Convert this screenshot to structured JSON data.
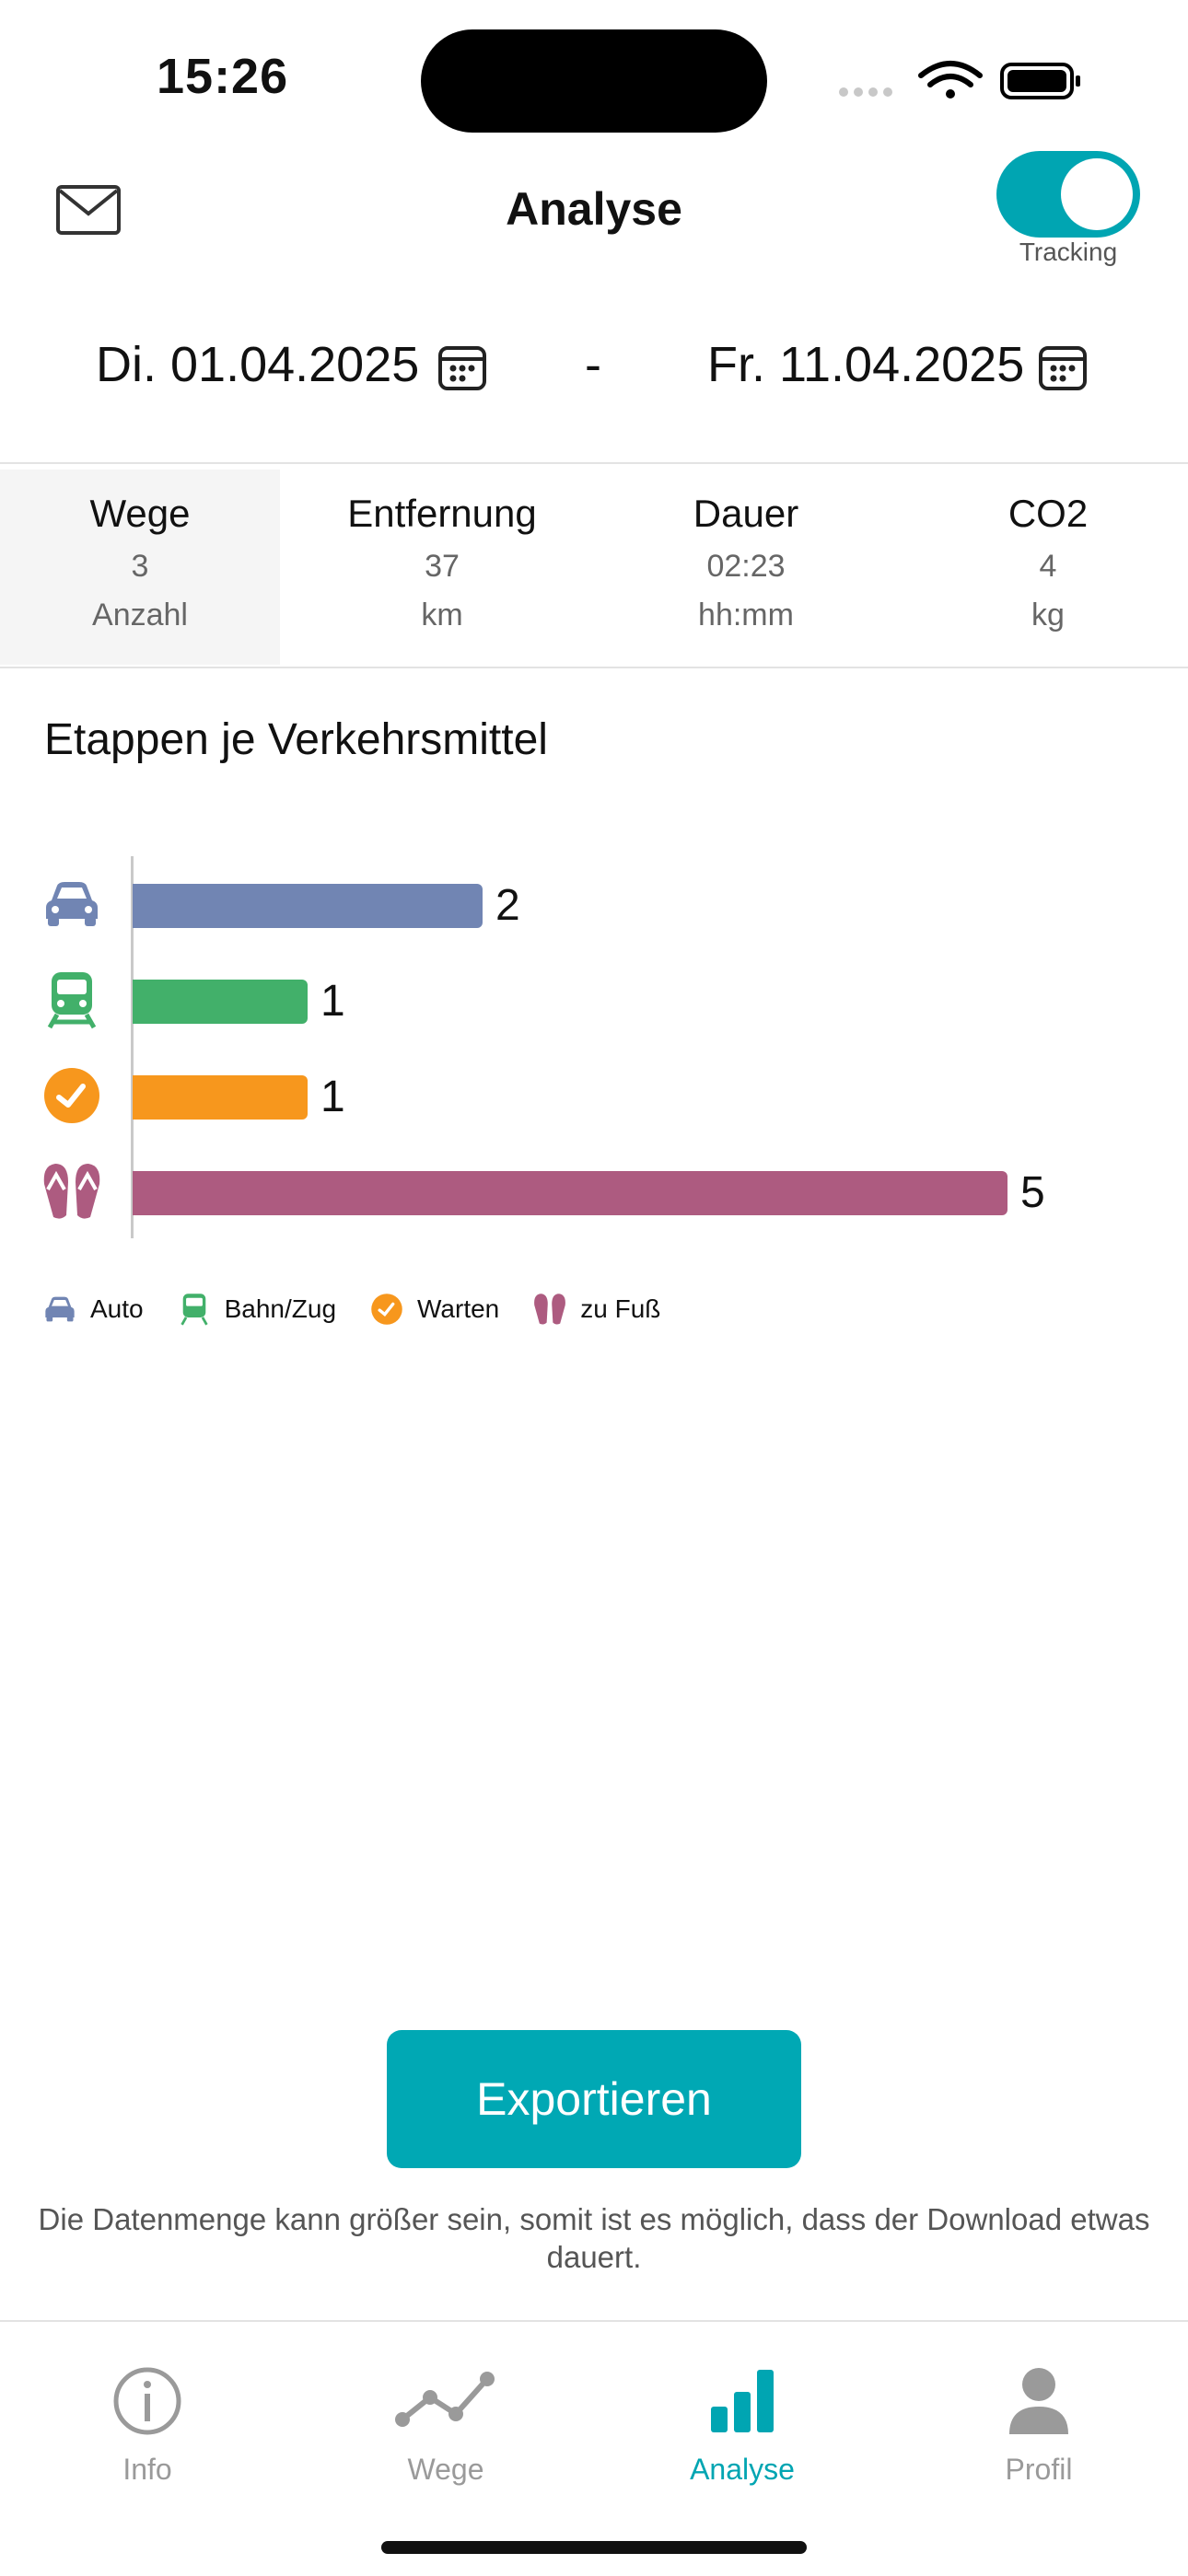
{
  "status": {
    "time": "15:26"
  },
  "header": {
    "title": "Analyse",
    "tracking_label": "Tracking",
    "tracking_on": true
  },
  "dates": {
    "from": "Di. 01.04.2025",
    "separator": "-",
    "to": "Fr. 11.04.2025"
  },
  "stats": [
    {
      "title": "Wege",
      "value": "3",
      "unit": "Anzahl"
    },
    {
      "title": "Entfernung",
      "value": "37",
      "unit": "km"
    },
    {
      "title": "Dauer",
      "value": "02:23",
      "unit": "hh:mm"
    },
    {
      "title": "CO2",
      "value": "4",
      "unit": "kg"
    }
  ],
  "chart": {
    "title": "Etappen je Verkehrsmittel"
  },
  "chart_data": {
    "type": "bar",
    "orientation": "horizontal",
    "title": "Etappen je Verkehrsmittel",
    "categories": [
      "Auto",
      "Bahn/Zug",
      "Warten",
      "zu Fuß"
    ],
    "values": [
      2,
      1,
      1,
      5
    ],
    "colors": [
      "#7185b3",
      "#42b06a",
      "#f7971d",
      "#ad5b80"
    ],
    "icons": [
      "car-icon",
      "train-icon",
      "clock-icon",
      "flip-flops-icon"
    ],
    "legend_position": "bottom-left"
  },
  "export": {
    "label": "Exportieren",
    "note": "Die Datenmenge kann größer sein, somit ist es möglich, dass der Download etwas dauert."
  },
  "tabs": [
    {
      "label": "Info",
      "icon": "info-icon"
    },
    {
      "label": "Wege",
      "icon": "route-icon"
    },
    {
      "label": "Analyse",
      "icon": "bar-chart-icon",
      "active": true
    },
    {
      "label": "Profil",
      "icon": "person-icon"
    }
  ],
  "accent_color": "#00a5b2"
}
